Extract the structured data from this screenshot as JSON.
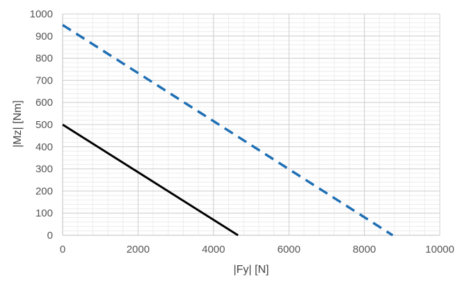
{
  "chart_data": {
    "type": "line",
    "title": "",
    "xlabel": "|Fy| [N]",
    "ylabel": "|Mz| [Nm]",
    "xlim": [
      0,
      10000
    ],
    "ylim": [
      0,
      1000
    ],
    "x_ticks": [
      0,
      2000,
      4000,
      6000,
      8000,
      10000
    ],
    "y_ticks": [
      0,
      100,
      200,
      300,
      400,
      500,
      600,
      700,
      800,
      900,
      1000
    ],
    "grid": {
      "major": true,
      "minor": true
    },
    "legend": "none",
    "series": [
      {
        "style": "solid",
        "color": "#000000",
        "x": [
          0,
          4650
        ],
        "y": [
          500,
          0
        ]
      },
      {
        "style": "dashed",
        "color": "#1f6fb4",
        "x": [
          0,
          8750
        ],
        "y": [
          950,
          0
        ]
      }
    ]
  }
}
